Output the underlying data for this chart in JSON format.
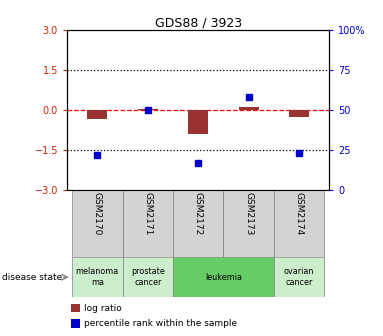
{
  "title": "GDS88 / 3923",
  "samples": [
    "GSM2170",
    "GSM2171",
    "GSM2172",
    "GSM2173",
    "GSM2174"
  ],
  "log_ratio": [
    -0.35,
    0.05,
    -0.9,
    0.12,
    -0.28
  ],
  "percentile_rank": [
    22,
    50,
    17,
    58,
    23
  ],
  "ylim_left": [
    -3,
    3
  ],
  "ylim_right": [
    0,
    100
  ],
  "yticks_left": [
    -3,
    -1.5,
    0,
    1.5,
    3
  ],
  "yticks_right": [
    0,
    25,
    50,
    75,
    100
  ],
  "bar_color": "#993333",
  "dot_color": "#0000cc",
  "bar_width": 0.4,
  "left_tick_color": "#cc2200",
  "right_tick_color": "#0000cc",
  "disease_groups": [
    {
      "label": "melanoma\nma",
      "display": "melanoma\nma",
      "start": 0,
      "end": 0,
      "color": "#cceecc"
    },
    {
      "label": "prostate\ncancer",
      "display": "prostate\ncancer",
      "start": 1,
      "end": 1,
      "color": "#cceecc"
    },
    {
      "label": "leukemia",
      "display": "leukemia",
      "start": 2,
      "end": 3,
      "color": "#66cc66"
    },
    {
      "label": "ovarian\ncancer",
      "display": "ovarian\ncancer",
      "start": 4,
      "end": 4,
      "color": "#cceecc"
    }
  ],
  "sample_bg_color": "#d3d3d3",
  "legend_bar_label": "log ratio",
  "legend_dot_label": "percentile rank within the sample"
}
